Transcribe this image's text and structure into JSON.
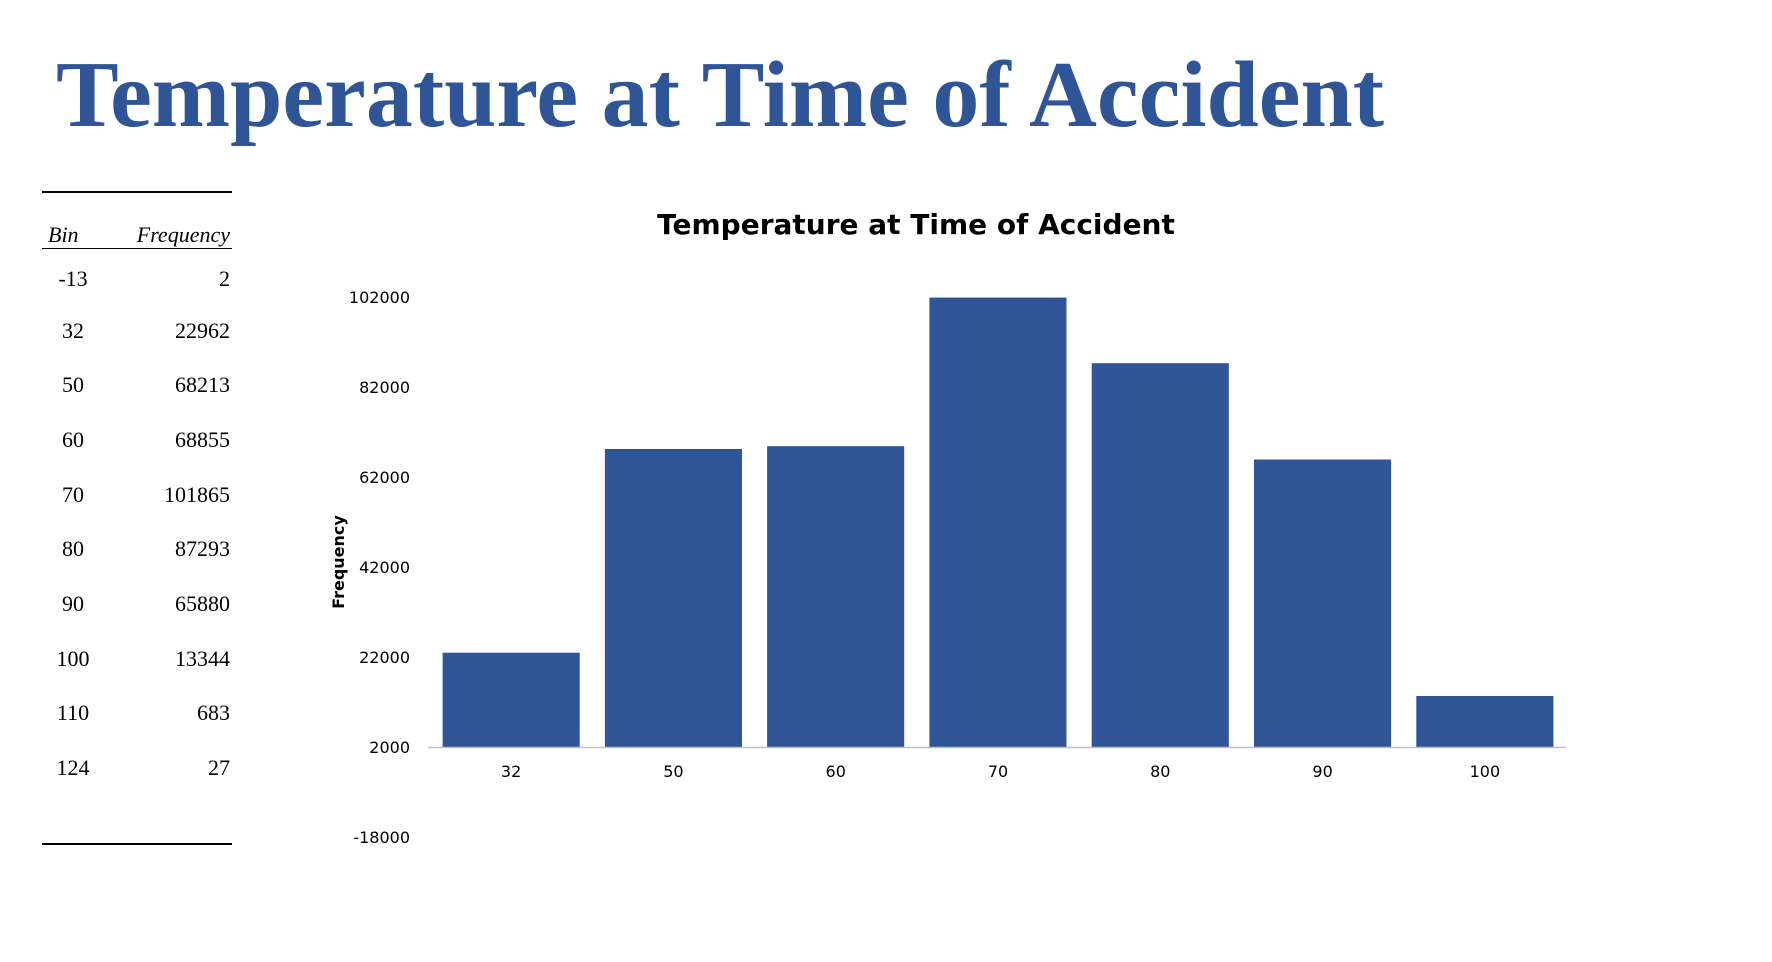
{
  "slide_title": "Temperature at Time of Accident",
  "table": {
    "headers": {
      "bin": "Bin",
      "frequency": "Frequency"
    },
    "rows": [
      {
        "bin": "-13",
        "frequency": "2"
      },
      {
        "bin": "32",
        "frequency": "22962"
      },
      {
        "bin": "50",
        "frequency": "68213"
      },
      {
        "bin": "60",
        "frequency": "68855"
      },
      {
        "bin": "70",
        "frequency": "101865"
      },
      {
        "bin": "80",
        "frequency": "87293"
      },
      {
        "bin": "90",
        "frequency": "65880"
      },
      {
        "bin": "100",
        "frequency": "13344"
      },
      {
        "bin": "110",
        "frequency": "683"
      },
      {
        "bin": "124",
        "frequency": "27"
      }
    ]
  },
  "chart_data": {
    "type": "bar",
    "title": "Temperature at Time of Accident",
    "xlabel": "",
    "ylabel": "Frequency",
    "categories": [
      "32",
      "50",
      "60",
      "70",
      "80",
      "90",
      "100"
    ],
    "values": [
      22962,
      68213,
      68855,
      101865,
      87293,
      65880,
      13344
    ],
    "yticks": [
      -18000,
      2000,
      22000,
      42000,
      62000,
      82000,
      102000
    ],
    "ylim": [
      2000,
      102000
    ],
    "bar_color": "#2f5597",
    "grid": false,
    "legend": "none"
  }
}
